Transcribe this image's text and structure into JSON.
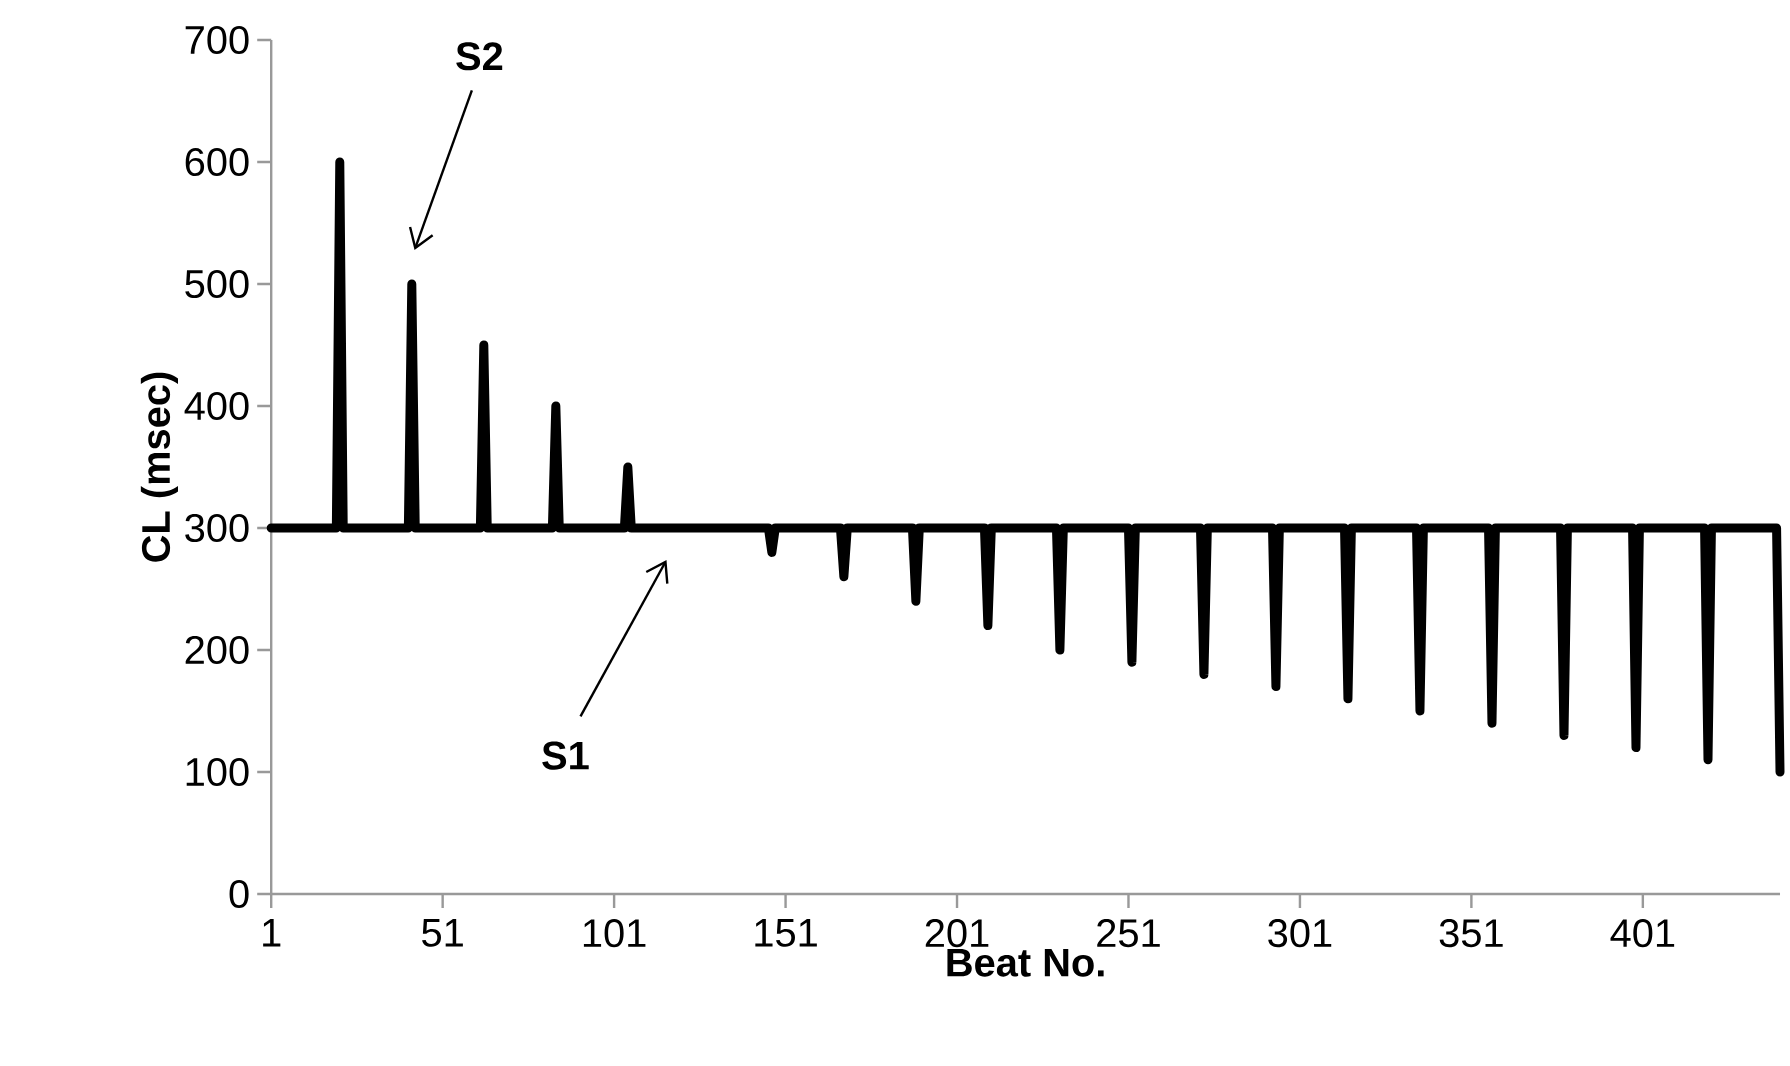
{
  "chart_data": {
    "type": "line",
    "xlabel": "Beat No.",
    "ylabel": "CL (msec)",
    "color": "#000000",
    "x": [
      1,
      20,
      21,
      22,
      41,
      42,
      43,
      62,
      63,
      64,
      83,
      84,
      85,
      104,
      105,
      106,
      146,
      147,
      148,
      167,
      168,
      169,
      188,
      189,
      190,
      209,
      210,
      211,
      230,
      231,
      232,
      251,
      252,
      253,
      272,
      273,
      274,
      293,
      294,
      295,
      314,
      315,
      316,
      335,
      336,
      337,
      356,
      357,
      358,
      377,
      378,
      379,
      398,
      399,
      400,
      419,
      420,
      421,
      440,
      441
    ],
    "values": [
      300,
      300,
      600,
      300,
      300,
      500,
      300,
      300,
      450,
      300,
      300,
      400,
      300,
      300,
      350,
      300,
      300,
      280,
      300,
      300,
      260,
      300,
      300,
      240,
      300,
      300,
      220,
      300,
      300,
      200,
      300,
      300,
      190,
      300,
      300,
      180,
      300,
      300,
      170,
      300,
      300,
      160,
      300,
      300,
      150,
      300,
      300,
      140,
      300,
      300,
      130,
      300,
      300,
      120,
      300,
      300,
      110,
      300,
      300,
      100
    ],
    "xlim": [
      1,
      441
    ],
    "ylim": [
      0,
      700
    ],
    "xticks": [
      1,
      51,
      101,
      151,
      201,
      251,
      301,
      351,
      401
    ],
    "yticks": [
      0,
      100,
      200,
      300,
      400,
      500,
      600,
      700
    ],
    "annotations": [
      "S2",
      "S1"
    ]
  }
}
